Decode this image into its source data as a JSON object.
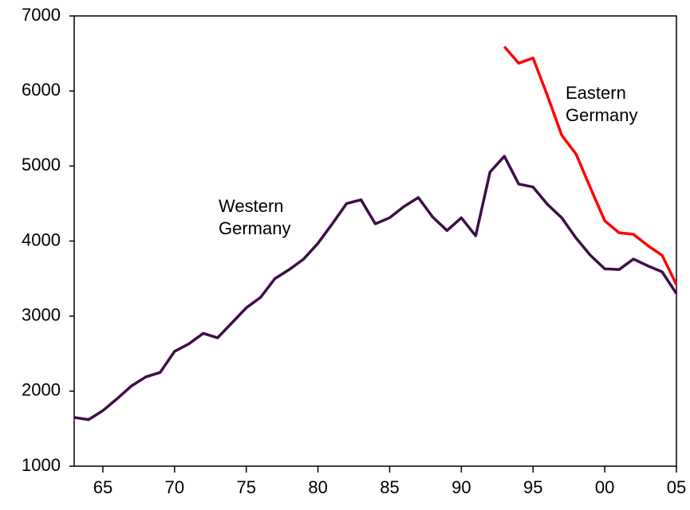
{
  "chart_data": {
    "type": "line",
    "x": [
      1963,
      1964,
      1965,
      1966,
      1967,
      1968,
      1969,
      1970,
      1971,
      1972,
      1973,
      1974,
      1975,
      1976,
      1977,
      1978,
      1979,
      1980,
      1981,
      1982,
      1983,
      1984,
      1985,
      1986,
      1987,
      1988,
      1989,
      1990,
      1991,
      1992,
      1993,
      1994,
      1995,
      1996,
      1997,
      1998,
      1999,
      2000,
      2001,
      2002,
      2003,
      2004,
      2005
    ],
    "series": [
      {
        "name": "Western Germany",
        "color": "#3c0f46",
        "values": [
          1650,
          1620,
          1740,
          1900,
          2070,
          2190,
          2250,
          2530,
          2630,
          2770,
          2710,
          2910,
          3110,
          3250,
          3500,
          3620,
          3760,
          3970,
          4230,
          4500,
          4550,
          4230,
          4310,
          4460,
          4580,
          4320,
          4140,
          4310,
          4070,
          4920,
          5130,
          4760,
          4720,
          4490,
          4310,
          4040,
          3810,
          3630,
          3620,
          3760,
          3670,
          3590,
          3300
        ]
      },
      {
        "name": "Eastern Germany",
        "color": "#ff0000",
        "values": [
          null,
          null,
          null,
          null,
          null,
          null,
          null,
          null,
          null,
          null,
          null,
          null,
          null,
          null,
          null,
          null,
          null,
          null,
          null,
          null,
          null,
          null,
          null,
          null,
          null,
          null,
          null,
          null,
          null,
          null,
          6590,
          6370,
          6440,
          5940,
          5410,
          5160,
          4710,
          4270,
          4110,
          4090,
          3940,
          3810,
          3420
        ]
      }
    ],
    "xlim": [
      1963,
      2005
    ],
    "xticks": [
      {
        "value": 1965,
        "label": "65"
      },
      {
        "value": 1970,
        "label": "70"
      },
      {
        "value": 1975,
        "label": "75"
      },
      {
        "value": 1980,
        "label": "80"
      },
      {
        "value": 1985,
        "label": "85"
      },
      {
        "value": 1990,
        "label": "90"
      },
      {
        "value": 1995,
        "label": "95"
      },
      {
        "value": 2000,
        "label": "00"
      },
      {
        "value": 2005,
        "label": "05"
      }
    ],
    "ylim": [
      1000,
      7000
    ],
    "yticks": [
      1000,
      2000,
      3000,
      4000,
      5000,
      6000,
      7000
    ]
  }
}
